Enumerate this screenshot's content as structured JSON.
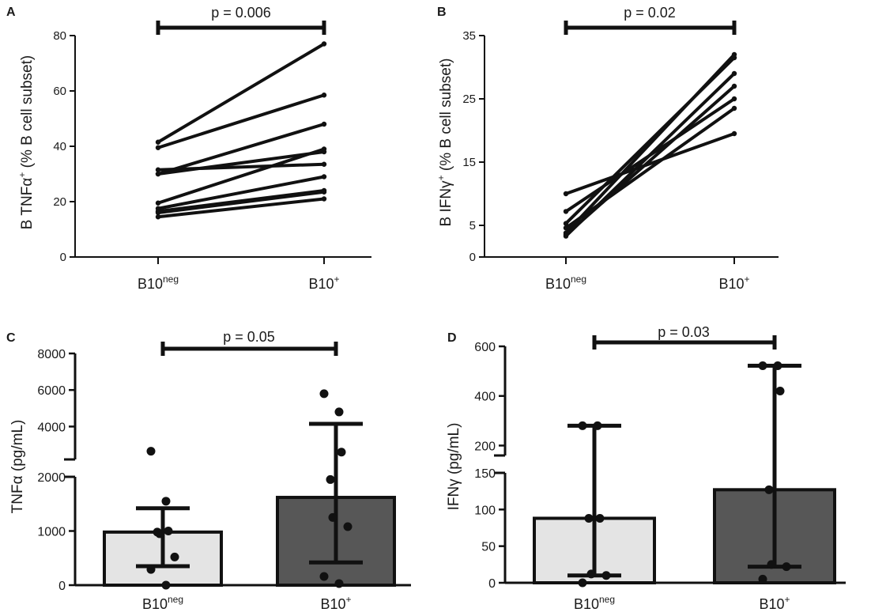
{
  "colors": {
    "line": "#111111",
    "bar_b10neg": "#e4e4e4",
    "bar_b10pos": "#575757"
  },
  "chart_data": [
    {
      "id": "A",
      "type": "line",
      "panel_label": "A",
      "ylabel_main": "B TNFα",
      "ylabel_sup": "+",
      "ylabel_rest": " (% B cell subset)",
      "categories": [
        {
          "main": "B10",
          "sup": "neg"
        },
        {
          "main": "B10",
          "sup": "+"
        }
      ],
      "ylim": [
        0,
        80
      ],
      "yticks": [
        0,
        20,
        40,
        60,
        80
      ],
      "series": [
        {
          "values": [
            41.5,
            77
          ]
        },
        {
          "values": [
            39.5,
            58.5
          ]
        },
        {
          "values": [
            31.5,
            33.5
          ]
        },
        {
          "values": [
            30,
            48
          ]
        },
        {
          "values": [
            30,
            38
          ]
        },
        {
          "values": [
            19.5,
            39
          ]
        },
        {
          "values": [
            17.5,
            29
          ]
        },
        {
          "values": [
            16.5,
            24
          ]
        },
        {
          "values": [
            16,
            23.5
          ]
        },
        {
          "values": [
            14.5,
            21
          ]
        }
      ],
      "annotation": "p = 0.006"
    },
    {
      "id": "B",
      "type": "line",
      "panel_label": "B",
      "ylabel_main": "B IFNγ",
      "ylabel_sup": "+",
      "ylabel_rest": " (% B cell subset)",
      "categories": [
        {
          "main": "B10",
          "sup": "neg"
        },
        {
          "main": "B10",
          "sup": "+"
        }
      ],
      "ylim": [
        0,
        35
      ],
      "yticks": [
        0,
        5,
        15,
        25,
        35
      ],
      "series": [
        {
          "values": [
            10,
            19.5
          ]
        },
        {
          "values": [
            7.2,
            25
          ]
        },
        {
          "values": [
            5.3,
            31.5
          ]
        },
        {
          "values": [
            4.6,
            23.5
          ]
        },
        {
          "values": [
            3.8,
            32
          ]
        },
        {
          "values": [
            3.3,
            29
          ]
        },
        {
          "values": [
            3.5,
            27
          ]
        }
      ],
      "annotation": "p = 0.02"
    },
    {
      "id": "C",
      "type": "bar",
      "panel_label": "C",
      "ylabel": "TNFα (pg/mL)",
      "categories": [
        {
          "main": "B10",
          "sup": "neg"
        },
        {
          "main": "B10",
          "sup": "+"
        }
      ],
      "broken_axis": {
        "lower_range": [
          0,
          2000
        ],
        "upper_range": [
          2200,
          8000
        ],
        "lower_ticks": [
          0,
          1000,
          2000
        ],
        "upper_ticks": [
          4000,
          6000,
          8000
        ]
      },
      "bars": [
        {
          "category": "B10neg",
          "mean": 980,
          "err_low": 350,
          "err_high": 1420,
          "points": [
            2650,
            1550,
            1000,
            980,
            950,
            520,
            290,
            0
          ]
        },
        {
          "category": "B10+",
          "mean": 1620,
          "err_low": 420,
          "err_high": 4150,
          "points": [
            5800,
            4800,
            2600,
            1950,
            1250,
            1080,
            160,
            30
          ]
        }
      ],
      "annotation": "p = 0.05"
    },
    {
      "id": "D",
      "type": "bar",
      "panel_label": "D",
      "ylabel": "IFNγ (pg/mL)",
      "categories": [
        {
          "main": "B10",
          "sup": "neg"
        },
        {
          "main": "B10",
          "sup": "+"
        }
      ],
      "broken_axis": {
        "lower_range": [
          0,
          150
        ],
        "upper_range": [
          160,
          600
        ],
        "lower_ticks": [
          0,
          50,
          100,
          150
        ],
        "upper_ticks": [
          200,
          400,
          600
        ]
      },
      "bars": [
        {
          "category": "B10neg",
          "mean": 88,
          "err_low": 10,
          "err_high": 280,
          "points": [
            280,
            280,
            88,
            88,
            12,
            10,
            0
          ]
        },
        {
          "category": "B10+",
          "mean": 127,
          "err_low": 22,
          "err_high": 522,
          "points": [
            522,
            522,
            420,
            127,
            25,
            22,
            5
          ]
        }
      ],
      "annotation": "p = 0.03"
    }
  ]
}
